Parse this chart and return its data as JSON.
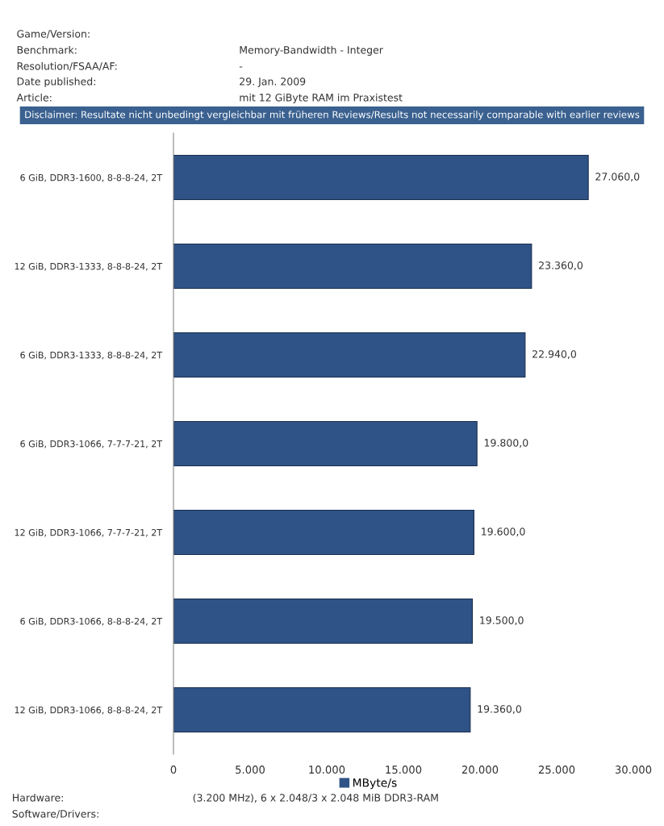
{
  "chart_data": {
    "type": "bar",
    "orientation": "horizontal",
    "categories": [
      "6 GiB, DDR3-1600, 8-8-8-24, 2T",
      "12 GiB, DDR3-1333, 8-8-8-24, 2T",
      "6 GiB, DDR3-1333, 8-8-8-24, 2T",
      "6 GiB, DDR3-1066, 7-7-7-21, 2T",
      "12 GiB, DDR3-1066, 7-7-7-21, 2T",
      "6 GiB, DDR3-1066, 8-8-8-24, 2T",
      "12 GiB, DDR3-1066, 8-8-8-24, 2T"
    ],
    "series": [
      {
        "name": "MByte/s",
        "color": "#2f5386",
        "values": [
          27060,
          23360,
          22940,
          19800,
          19600,
          19500,
          19360
        ],
        "value_labels": [
          "27.060,0",
          "23.360,0",
          "22.940,0",
          "19.800,0",
          "19.600,0",
          "19.500,0",
          "19.360,0"
        ]
      }
    ],
    "xlim": [
      0,
      30000
    ],
    "xticks": [
      0,
      {
        "value": 5000,
        "label": "5.000"
      },
      {
        "value": 10000,
        "label": "10.000"
      },
      {
        "value": 15000,
        "label": "15.000"
      },
      {
        "value": 20000,
        "label": "20.000"
      },
      {
        "value": 25000,
        "label": "25.000"
      },
      {
        "value": 30000,
        "label": "30.000"
      }
    ],
    "legend": "bottom",
    "grid": false,
    "annotations": [
      "Game/Version:",
      "Benchmark:",
      "Memory-Bandwidth - Integer",
      "Resolution/FSAA/AF:",
      "-",
      "Date published:",
      "29. Jan. 2009",
      "Article:",
      "mit 12 GiByte RAM im Praxistest",
      "Disclaimer: Resultate nicht unbedingt vergleichbar mit früheren Reviews/Results not necessarily comparable with earlier reviews",
      "Hardware:",
      "(3.200 MHz), 6 x 2.048/3 x 2.048 MiB DDR3-RAM",
      "Software/Drivers:"
    ]
  }
}
